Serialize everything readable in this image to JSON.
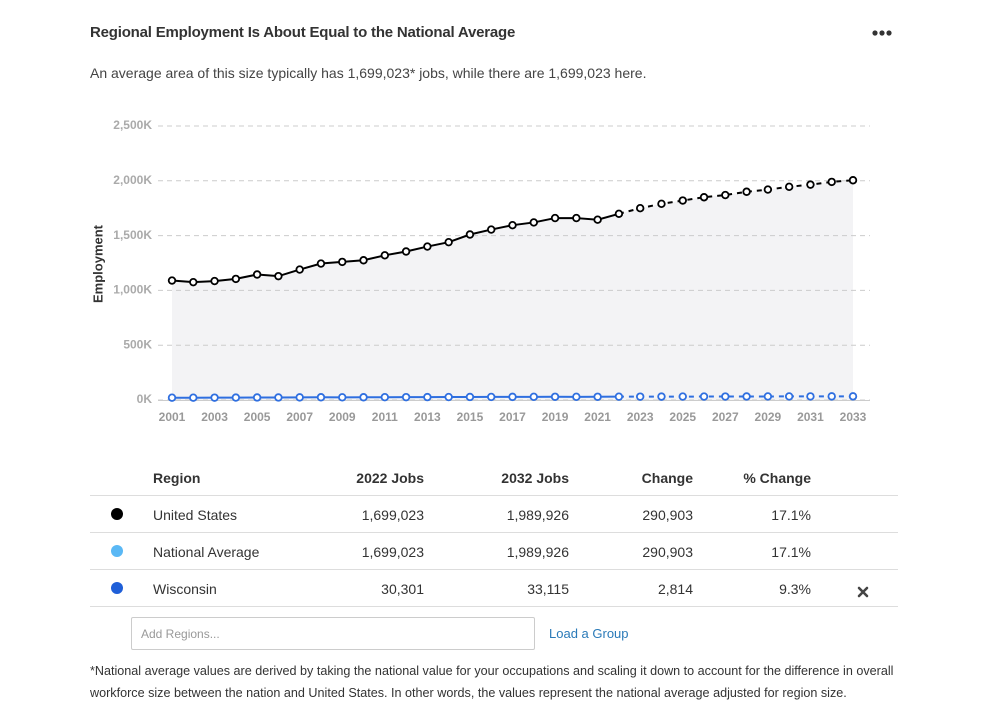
{
  "header": {
    "title": "Regional Employment Is About Equal to the National Average",
    "subtitle": "An average area of this size typically has 1,699,023* jobs, while there are 1,699,023 here."
  },
  "chart_data": {
    "type": "line",
    "y_label": "Employment",
    "x": [
      2001,
      2002,
      2003,
      2004,
      2005,
      2006,
      2007,
      2008,
      2009,
      2010,
      2011,
      2012,
      2013,
      2014,
      2015,
      2016,
      2017,
      2018,
      2019,
      2020,
      2021,
      2022,
      2023,
      2024,
      2025,
      2026,
      2027,
      2028,
      2029,
      2030,
      2031,
      2032,
      2033
    ],
    "series": [
      {
        "color": "#000000",
        "values": [
          1090000,
          1075000,
          1085000,
          1105000,
          1145000,
          1130000,
          1190000,
          1245000,
          1260000,
          1275000,
          1320000,
          1355000,
          1400000,
          1440000,
          1510000,
          1555000,
          1595000,
          1620000,
          1660000,
          1660000,
          1645000,
          1699023,
          1750000,
          1790000,
          1820000,
          1850000,
          1870000,
          1900000,
          1920000,
          1945000,
          1965000,
          1989926,
          2005000
        ]
      },
      {
        "color": "#2f6fe0",
        "values": [
          21000,
          21000,
          21500,
          22000,
          23000,
          23000,
          24000,
          25000,
          24500,
          25000,
          25500,
          26000,
          26500,
          27000,
          27500,
          28000,
          28500,
          29000,
          29500,
          29000,
          29500,
          30301,
          30600,
          30900,
          31200,
          31500,
          31800,
          32100,
          32400,
          32700,
          32900,
          33115,
          33300
        ]
      }
    ],
    "xlim": [
      2001,
      2033
    ],
    "xticks": [
      2001,
      2003,
      2005,
      2007,
      2009,
      2011,
      2013,
      2015,
      2017,
      2019,
      2021,
      2023,
      2025,
      2027,
      2029,
      2031,
      2033
    ],
    "ylim": [
      0,
      2500000
    ],
    "yticks": [
      {
        "value": 0,
        "label": "0K"
      },
      {
        "value": 500000,
        "label": "500K"
      },
      {
        "value": 1000000,
        "label": "1,000K"
      },
      {
        "value": 1500000,
        "label": "1,500K"
      },
      {
        "value": 2000000,
        "label": "2,000K"
      },
      {
        "value": 2500000,
        "label": "2,500K"
      }
    ],
    "grid": true,
    "projection_from": 2022,
    "area_color": "#f3f3f5"
  },
  "table": {
    "columns": [
      "Region",
      "2022 Jobs",
      "2032 Jobs",
      "Change",
      "% Change"
    ],
    "rows": [
      [
        "United States",
        "1,699,023",
        "1,989,926",
        "290,903",
        "17.1%"
      ],
      [
        "National Average",
        "1,699,023",
        "1,989,926",
        "290,903",
        "17.1%"
      ],
      [
        "Wisconsin",
        "30,301",
        "33,115",
        "2,814",
        "9.3%"
      ]
    ],
    "row_colors": [
      "#000000",
      "#5ab8f5",
      "#1f5fd8"
    ]
  },
  "add_regions": {
    "placeholder": "Add Regions...",
    "link": "Load a Group"
  },
  "footnote": "*National average values are derived by taking the national value for your occupations and scaling it down to account for the difference in overall workforce size between the nation and United States. In other words, the values represent the national average adjusted for region size."
}
